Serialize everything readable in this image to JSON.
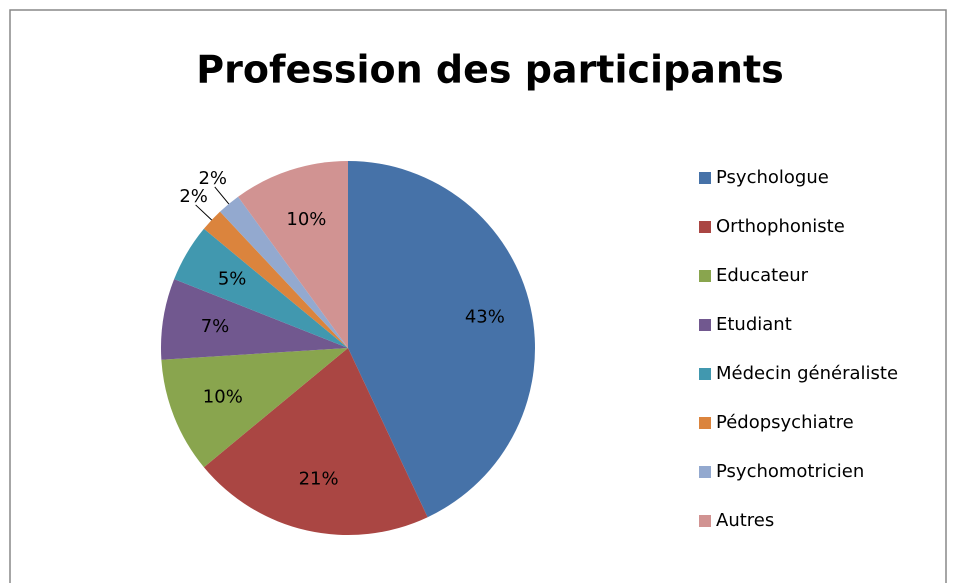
{
  "chart_data": {
    "type": "pie",
    "title": "Profession des participants",
    "categories": [
      "Psychologue",
      "Orthophoniste",
      "Educateur",
      "Etudiant",
      "Médecin généraliste",
      "Pédopsychiatre",
      "Psychomotricien",
      "Autres"
    ],
    "values": [
      43,
      21,
      10,
      7,
      5,
      2,
      2,
      10
    ],
    "value_labels": [
      "43%",
      "21%",
      "10%",
      "7%",
      "5%",
      "2%",
      "2%",
      "10%"
    ],
    "colors": [
      "#4672a8",
      "#aa4643",
      "#89a54e",
      "#71588f",
      "#4198af",
      "#db843d",
      "#93a9cf",
      "#d19392"
    ],
    "legend": "right"
  }
}
